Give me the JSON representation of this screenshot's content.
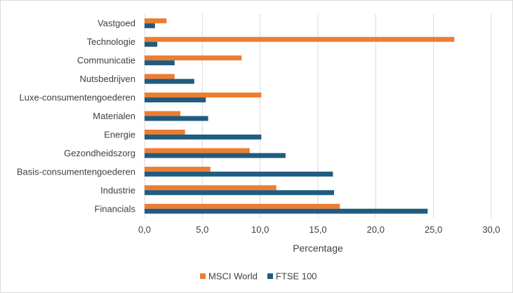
{
  "chart_data": {
    "type": "bar",
    "orientation": "horizontal",
    "categories": [
      "Vastgoed",
      "Technologie",
      "Communicatie",
      "Nutsbedrijven",
      "Luxe-consumentengoederen",
      "Materialen",
      "Energie",
      "Gezondheidszorg",
      "Basis-consumentengoederen",
      "Industrie",
      "Financials"
    ],
    "series": [
      {
        "name": "MSCI World",
        "color": "#ED7D31",
        "values": [
          1.9,
          26.8,
          8.4,
          2.6,
          10.1,
          3.1,
          3.5,
          9.1,
          5.7,
          11.4,
          16.9
        ]
      },
      {
        "name": "FTSE 100",
        "color": "#1F5C7F",
        "values": [
          0.9,
          1.1,
          2.6,
          4.3,
          5.3,
          5.5,
          10.1,
          12.2,
          16.3,
          16.4,
          24.5
        ]
      }
    ],
    "xlabel": "Percentage",
    "ylabel": "",
    "xlim": [
      0,
      30
    ],
    "xticks": [
      "0,0",
      "5,0",
      "10,0",
      "15,0",
      "20,0",
      "25,0",
      "30,0"
    ],
    "grid": "vertical",
    "legend": "bottom"
  }
}
